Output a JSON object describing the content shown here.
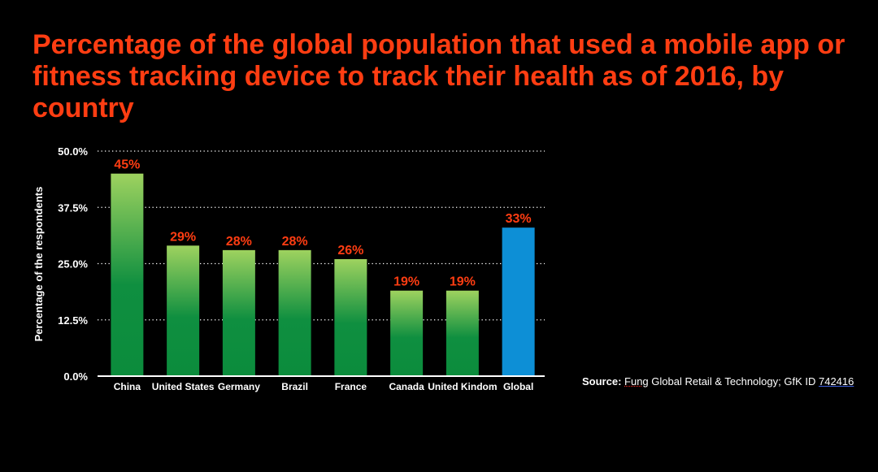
{
  "chart_data": {
    "type": "bar",
    "title": "Percentage of the global population that used a mobile app or fitness tracking device to track their health as of 2016, by country",
    "ylabel": "Percentage of the respondents",
    "xlabel": "",
    "ylim": [
      0,
      50
    ],
    "yticks": [
      "0.0%",
      "12.5%",
      "25.0%",
      "37.5%",
      "50.0%"
    ],
    "ytick_values": [
      0,
      12.5,
      25,
      37.5,
      50
    ],
    "grid": true,
    "categories": [
      "China",
      "United States",
      "Germany",
      "Brazil",
      "France",
      "Canada",
      "United Kindom",
      "Global"
    ],
    "values": [
      45,
      29,
      28,
      28,
      26,
      19,
      19,
      33
    ],
    "data_labels": [
      "45%",
      "29%",
      "28%",
      "28%",
      "26%",
      "19%",
      "19%",
      "33%"
    ],
    "bar_colors": [
      "green",
      "green",
      "green",
      "green",
      "green",
      "green",
      "green",
      "blue"
    ]
  },
  "colors": {
    "title": "#ff3d12",
    "data_label": "#ff3d12",
    "green_top": "#9ed25f",
    "green_bottom": "#0b8c3c",
    "blue": "#0d8fd6",
    "text": "#ffffff",
    "background": "#000000"
  },
  "source": {
    "label": "Source:",
    "first_word": "Fung",
    "middle": " Global Retail & Technology; GfK ID ",
    "id": "742416"
  }
}
